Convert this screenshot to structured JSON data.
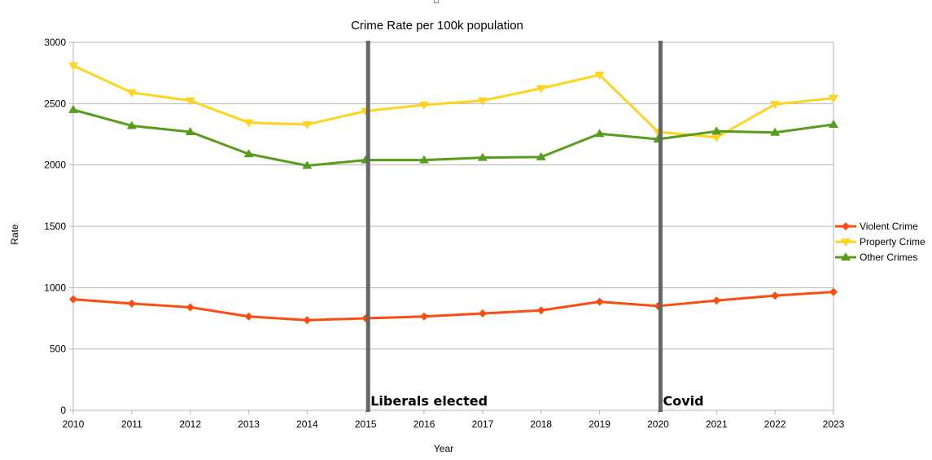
{
  "chart_data": {
    "type": "line",
    "title": "Crime Rate per 100k population",
    "xlabel": "Year",
    "ylabel": "Rate",
    "x": [
      2010,
      2011,
      2012,
      2013,
      2014,
      2015,
      2016,
      2017,
      2018,
      2019,
      2020,
      2021,
      2022,
      2023
    ],
    "xlim": [
      2010,
      2023
    ],
    "ylim": [
      0,
      3000
    ],
    "yticks": [
      0,
      500,
      1000,
      1500,
      2000,
      2500,
      3000
    ],
    "grid": "horizontal",
    "legend_position": "right",
    "series": [
      {
        "name": "Violent Crime",
        "color": "#ff4b12",
        "marker": "diamond",
        "values": [
          905,
          870,
          840,
          765,
          735,
          750,
          765,
          790,
          815,
          885,
          850,
          895,
          935,
          965
        ]
      },
      {
        "name": "Property Crime",
        "color": "#ffd320",
        "marker": "triangle-down",
        "values": [
          2810,
          2590,
          2525,
          2345,
          2330,
          2440,
          2490,
          2525,
          2625,
          2735,
          2270,
          2225,
          2495,
          2545
        ]
      },
      {
        "name": "Other Crimes",
        "color": "#579d1c",
        "marker": "triangle-up",
        "values": [
          2450,
          2320,
          2270,
          2090,
          1995,
          2040,
          2040,
          2060,
          2065,
          2255,
          2210,
          2275,
          2265,
          2330
        ]
      }
    ],
    "annotations": [
      {
        "x": 2015,
        "label": "Liberals elected",
        "color": "#666666"
      },
      {
        "x": 2020,
        "label": "Covid",
        "color": "#666666"
      }
    ]
  }
}
